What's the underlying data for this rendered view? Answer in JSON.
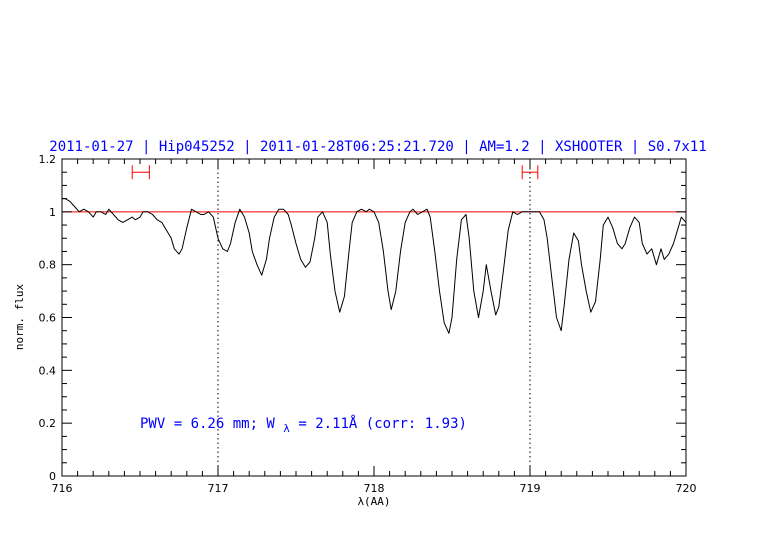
{
  "chart_data": {
    "type": "line",
    "title": "2011-01-27 | Hip045252 | 2011-01-28T06:25:21.720 | AM=1.2 | XSHOOTER | S0.7x11",
    "xlabel": "λ(AA)",
    "ylabel": "norm. flux",
    "xlim": [
      716,
      720
    ],
    "ylim": [
      0,
      1.2
    ],
    "x_ticks": [
      "716",
      "717",
      "718",
      "719",
      "720"
    ],
    "y_ticks": [
      "0",
      "0.2",
      "0.4",
      "0.6",
      "0.8",
      "1",
      "1.2"
    ],
    "reference_line": {
      "y": 1.0,
      "color": "#ff0000"
    },
    "vertical_dotted_lines": [
      717.0,
      719.0
    ],
    "error_bars": [
      {
        "x_start": 716.45,
        "x_end": 716.56,
        "y": 1.15
      },
      {
        "x_start": 718.95,
        "x_end": 719.05,
        "y": 1.15
      }
    ],
    "annotation": {
      "prefix": "PWV = 6.26 mm; W",
      "subscript": "λ",
      "suffix": " = 2.11Å (corr: 1.93)"
    },
    "series": [
      {
        "color": "#000000",
        "x": [
          716.0,
          716.02,
          716.05,
          716.08,
          716.11,
          716.14,
          716.17,
          716.2,
          716.22,
          716.25,
          716.28,
          716.3,
          716.33,
          716.36,
          716.39,
          716.42,
          716.45,
          716.47,
          716.5,
          716.52,
          716.55,
          716.58,
          716.61,
          716.64,
          716.67,
          716.7,
          716.72,
          716.75,
          716.77,
          716.8,
          716.83,
          716.86,
          716.89,
          716.91,
          716.94,
          716.97,
          717.0,
          717.03,
          717.06,
          717.08,
          717.11,
          717.14,
          717.17,
          717.2,
          717.22,
          717.25,
          717.28,
          717.31,
          717.33,
          717.36,
          717.39,
          717.42,
          717.45,
          717.47,
          717.5,
          717.53,
          717.56,
          717.59,
          717.62,
          717.64,
          717.67,
          717.7,
          717.72,
          717.75,
          717.78,
          717.81,
          717.84,
          717.86,
          717.89,
          717.92,
          717.95,
          717.97,
          718.0,
          718.03,
          718.06,
          718.09,
          718.11,
          718.14,
          718.17,
          718.2,
          718.23,
          718.25,
          718.28,
          718.31,
          718.34,
          718.36,
          718.39,
          718.42,
          718.45,
          718.48,
          718.5,
          718.53,
          718.56,
          718.59,
          718.61,
          718.64,
          718.67,
          718.7,
          718.72,
          718.75,
          718.78,
          718.8,
          718.83,
          718.86,
          718.89,
          718.92,
          718.95,
          718.97,
          719.0,
          719.03,
          719.06,
          719.09,
          719.11,
          719.14,
          719.17,
          719.2,
          719.22,
          719.25,
          719.28,
          719.31,
          719.33,
          719.36,
          719.39,
          719.42,
          719.45,
          719.47,
          719.5,
          719.53,
          719.56,
          719.59,
          719.61,
          719.64,
          719.67,
          719.7,
          719.72,
          719.75,
          719.78,
          719.81,
          719.84,
          719.86,
          719.89,
          719.92,
          719.95,
          719.97,
          720.0
        ],
        "y": [
          1.05,
          1.05,
          1.04,
          1.02,
          1.0,
          1.01,
          1.0,
          0.98,
          1.0,
          1.0,
          0.99,
          1.01,
          0.99,
          0.97,
          0.96,
          0.97,
          0.98,
          0.97,
          0.98,
          1.0,
          1.0,
          0.99,
          0.97,
          0.96,
          0.93,
          0.9,
          0.86,
          0.84,
          0.86,
          0.94,
          1.01,
          1.0,
          0.99,
          0.99,
          1.0,
          0.98,
          0.9,
          0.86,
          0.85,
          0.88,
          0.96,
          1.01,
          0.98,
          0.92,
          0.85,
          0.8,
          0.76,
          0.82,
          0.9,
          0.98,
          1.01,
          1.01,
          0.99,
          0.95,
          0.88,
          0.82,
          0.79,
          0.81,
          0.9,
          0.98,
          1.0,
          0.96,
          0.84,
          0.7,
          0.62,
          0.68,
          0.85,
          0.96,
          1.0,
          1.01,
          1.0,
          1.01,
          1.0,
          0.96,
          0.85,
          0.7,
          0.63,
          0.7,
          0.85,
          0.96,
          1.0,
          1.01,
          0.99,
          1.0,
          1.01,
          0.98,
          0.85,
          0.7,
          0.58,
          0.54,
          0.6,
          0.82,
          0.97,
          0.99,
          0.9,
          0.7,
          0.6,
          0.7,
          0.8,
          0.7,
          0.61,
          0.64,
          0.78,
          0.93,
          1.0,
          0.99,
          1.0,
          1.0,
          1.0,
          1.0,
          1.0,
          0.97,
          0.9,
          0.75,
          0.6,
          0.55,
          0.65,
          0.82,
          0.92,
          0.89,
          0.8,
          0.7,
          0.62,
          0.66,
          0.82,
          0.95,
          0.98,
          0.94,
          0.88,
          0.86,
          0.88,
          0.94,
          0.98,
          0.96,
          0.88,
          0.84,
          0.86,
          0.8,
          0.86,
          0.82,
          0.84,
          0.88,
          0.94,
          0.98,
          0.96
        ]
      }
    ]
  }
}
